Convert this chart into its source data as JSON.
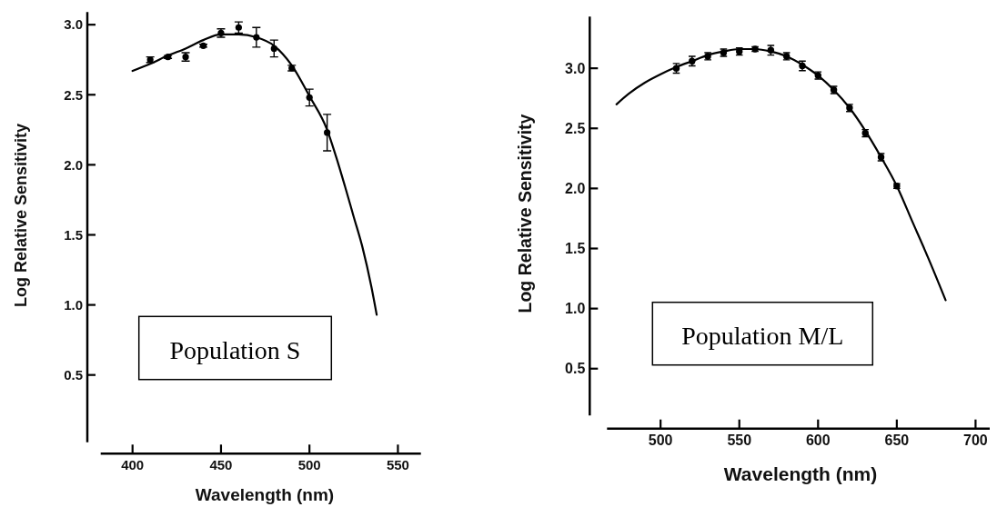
{
  "chart_data": [
    {
      "type": "scatter",
      "xlabel": "Wavelength (nm)",
      "ylabel": "Log Relative Sensitivity",
      "annotations": [
        "Population S"
      ],
      "xlim": [
        382,
        563
      ],
      "ylim": [
        0.02,
        3.09
      ],
      "xticks": [
        400,
        450,
        500,
        550
      ],
      "yticks": [
        0.5,
        {
          "value": 1,
          "label": "1.0"
        },
        1.5,
        {
          "value": 2,
          "label": "2.0"
        },
        2.5,
        {
          "value": 3,
          "label": "3.0"
        }
      ],
      "series": [
        {
          "color": "#000000",
          "marker": "circle",
          "x": [
            410,
            420,
            430,
            440,
            450,
            460,
            470,
            480,
            490,
            500,
            510
          ],
          "values": [
            2.75,
            2.77,
            2.77,
            2.85,
            2.94,
            2.98,
            2.91,
            2.83,
            2.69,
            2.48,
            2.23
          ],
          "errors": [
            0.02,
            0.01,
            0.03,
            0.01,
            0.03,
            0.04,
            0.07,
            0.06,
            0.02,
            0.06,
            0.13
          ]
        },
        {
          "type": "line",
          "color": "#000000",
          "x": [
            400,
            410,
            420,
            430,
            440,
            450,
            455,
            460,
            470,
            480,
            490,
            500,
            510,
            515,
            520,
            525,
            530,
            535,
            538
          ],
          "values": [
            2.67,
            2.72,
            2.78,
            2.83,
            2.89,
            2.93,
            2.93,
            2.93,
            2.91,
            2.85,
            2.71,
            2.49,
            2.25,
            2.06,
            1.85,
            1.63,
            1.41,
            1.13,
            0.93
          ]
        }
      ]
    },
    {
      "type": "scatter",
      "xlabel": "Wavelength (nm)",
      "ylabel": "Log Relative Sensitivity",
      "annotations": [
        "Population M/L"
      ],
      "xlim": [
        466,
        709
      ],
      "ylim": [
        0.11,
        3.43
      ],
      "xticks": [
        500,
        550,
        600,
        650,
        700
      ],
      "yticks": [
        0.5,
        {
          "value": 1,
          "label": "1.0"
        },
        1.5,
        {
          "value": 2,
          "label": "2.0"
        },
        2.5,
        {
          "value": 3,
          "label": "3.0"
        }
      ],
      "series": [
        {
          "color": "#000000",
          "marker": "circle",
          "x": [
            510,
            520,
            530,
            540,
            550,
            560,
            570,
            580,
            590,
            600,
            610,
            620,
            630,
            640,
            650
          ],
          "values": [
            3.0,
            3.06,
            3.1,
            3.13,
            3.14,
            3.16,
            3.15,
            3.1,
            3.02,
            2.94,
            2.82,
            2.67,
            2.46,
            2.26,
            2.02
          ],
          "errors": [
            0.04,
            0.04,
            0.03,
            0.03,
            0.03,
            0.02,
            0.04,
            0.03,
            0.04,
            0.03,
            0.03,
            0.03,
            0.03,
            0.03,
            0.02
          ]
        },
        {
          "type": "line",
          "color": "#000000",
          "x": [
            472,
            480,
            490,
            500,
            510,
            520,
            530,
            540,
            550,
            560,
            570,
            580,
            590,
            600,
            610,
            620,
            630,
            640,
            650,
            660,
            670,
            681
          ],
          "values": [
            2.7,
            2.79,
            2.88,
            2.95,
            3.01,
            3.06,
            3.11,
            3.14,
            3.16,
            3.16,
            3.14,
            3.1,
            3.03,
            2.94,
            2.82,
            2.67,
            2.48,
            2.26,
            2.02,
            1.72,
            1.42,
            1.07
          ]
        }
      ]
    }
  ]
}
